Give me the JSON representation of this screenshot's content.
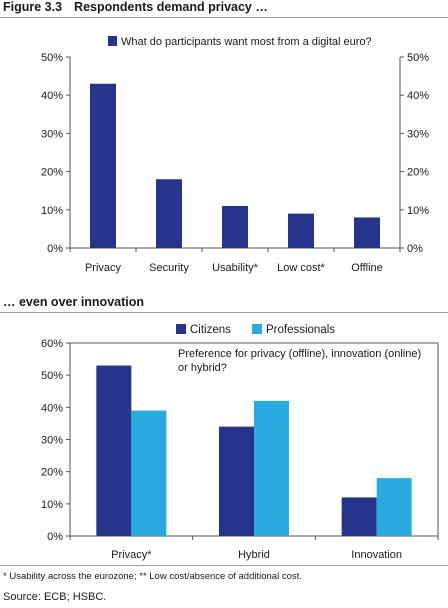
{
  "figure": {
    "number": "Figure 3.3",
    "title": "Respondents demand privacy …",
    "subtitle": "… even over innovation",
    "footnote": "* Usability across the eurozone; ** Low cost/absence of additional cost.",
    "source": "Source: ECB; HSBC."
  },
  "chart_data": [
    {
      "type": "bar",
      "title": "",
      "xlabel": "",
      "ylabel": "",
      "categories": [
        "Privacy",
        "Security",
        "Usability*",
        "Low cost*",
        "Offline"
      ],
      "series": [
        {
          "name": "What do participants want most from a digital euro?",
          "values": [
            43,
            18,
            11,
            9,
            8
          ],
          "color": "#27348b"
        }
      ],
      "ylim": [
        0,
        50
      ],
      "yticks": [
        "0%",
        "10%",
        "20%",
        "30%",
        "40%",
        "50%"
      ],
      "secondary_axis": true,
      "legend_position": "top"
    },
    {
      "type": "bar",
      "title": "",
      "xlabel": "",
      "ylabel": "",
      "categories": [
        "Privacy*",
        "Hybrid",
        "Innovation"
      ],
      "series": [
        {
          "name": "Citizens",
          "values": [
            53,
            34,
            12
          ],
          "color": "#27348b"
        },
        {
          "name": "Professionals",
          "values": [
            39,
            42,
            18
          ],
          "color": "#29abe2"
        }
      ],
      "annotation": "Preference for privacy (offline), innovation (online) or hybrid?",
      "ylim": [
        0,
        60
      ],
      "yticks": [
        "0%",
        "10%",
        "20%",
        "30%",
        "40%",
        "50%",
        "60%"
      ],
      "legend_position": "top"
    }
  ]
}
